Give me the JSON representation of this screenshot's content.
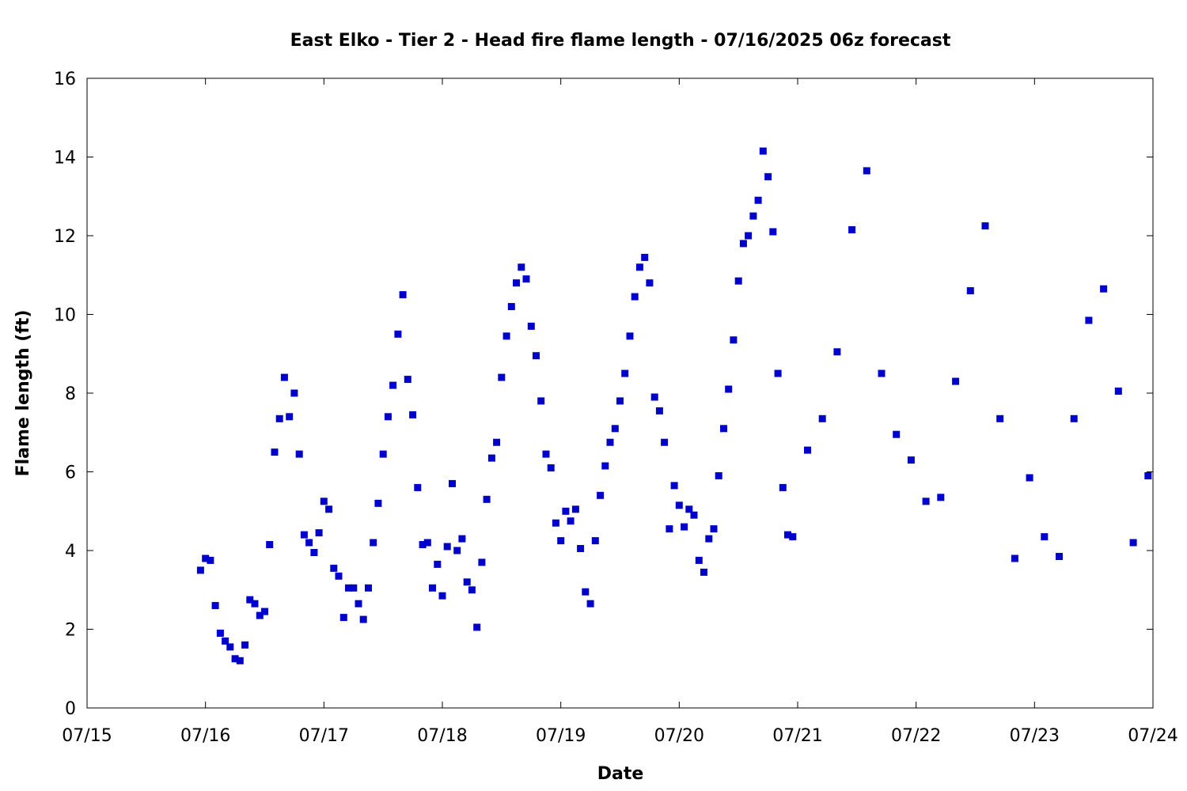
{
  "chart_data": {
    "type": "scatter",
    "title": "East Elko - Tier 2 - Head fire flame length - 07/16/2025 06z forecast",
    "xlabel": "Date",
    "ylabel": "Flame length (ft)",
    "x_axis": {
      "type": "date",
      "min": "2025-07-15T00:00",
      "max": "2025-07-24T00:00",
      "tick_labels": [
        "07/15",
        "07/16",
        "07/17",
        "07/18",
        "07/19",
        "07/20",
        "07/21",
        "07/22",
        "07/23",
        "07/24"
      ]
    },
    "ylim": [
      0,
      16
    ],
    "y_ticks": [
      0,
      2,
      4,
      6,
      8,
      10,
      12,
      14,
      16
    ],
    "grid": false,
    "marker_color": "#0000cc",
    "series": [
      {
        "points": [
          [
            "2025-07-15T23:00",
            3.5
          ],
          [
            "2025-07-16T00:00",
            3.8
          ],
          [
            "2025-07-16T01:00",
            3.75
          ],
          [
            "2025-07-16T02:00",
            2.6
          ],
          [
            "2025-07-16T03:00",
            1.9
          ],
          [
            "2025-07-16T04:00",
            1.7
          ],
          [
            "2025-07-16T05:00",
            1.55
          ],
          [
            "2025-07-16T06:00",
            1.25
          ],
          [
            "2025-07-16T07:00",
            1.2
          ],
          [
            "2025-07-16T08:00",
            1.6
          ],
          [
            "2025-07-16T09:00",
            2.75
          ],
          [
            "2025-07-16T10:00",
            2.65
          ],
          [
            "2025-07-16T11:00",
            2.35
          ],
          [
            "2025-07-16T12:00",
            2.45
          ],
          [
            "2025-07-16T13:00",
            4.15
          ],
          [
            "2025-07-16T14:00",
            6.5
          ],
          [
            "2025-07-16T15:00",
            7.35
          ],
          [
            "2025-07-16T16:00",
            8.4
          ],
          [
            "2025-07-16T17:00",
            7.4
          ],
          [
            "2025-07-16T18:00",
            8.0
          ],
          [
            "2025-07-16T19:00",
            6.45
          ],
          [
            "2025-07-16T20:00",
            4.4
          ],
          [
            "2025-07-16T21:00",
            4.2
          ],
          [
            "2025-07-16T22:00",
            3.95
          ],
          [
            "2025-07-16T23:00",
            4.45
          ],
          [
            "2025-07-17T00:00",
            5.25
          ],
          [
            "2025-07-17T01:00",
            5.05
          ],
          [
            "2025-07-17T02:00",
            3.55
          ],
          [
            "2025-07-17T03:00",
            3.35
          ],
          [
            "2025-07-17T04:00",
            2.3
          ],
          [
            "2025-07-17T05:00",
            3.05
          ],
          [
            "2025-07-17T06:00",
            3.05
          ],
          [
            "2025-07-17T07:00",
            2.65
          ],
          [
            "2025-07-17T08:00",
            2.25
          ],
          [
            "2025-07-17T09:00",
            3.05
          ],
          [
            "2025-07-17T10:00",
            4.2
          ],
          [
            "2025-07-17T11:00",
            5.2
          ],
          [
            "2025-07-17T12:00",
            6.45
          ],
          [
            "2025-07-17T13:00",
            7.4
          ],
          [
            "2025-07-17T14:00",
            8.2
          ],
          [
            "2025-07-17T15:00",
            9.5
          ],
          [
            "2025-07-17T16:00",
            10.5
          ],
          [
            "2025-07-17T17:00",
            8.35
          ],
          [
            "2025-07-17T18:00",
            7.45
          ],
          [
            "2025-07-17T19:00",
            5.6
          ],
          [
            "2025-07-17T20:00",
            4.15
          ],
          [
            "2025-07-17T21:00",
            4.2
          ],
          [
            "2025-07-17T22:00",
            3.05
          ],
          [
            "2025-07-17T23:00",
            3.65
          ],
          [
            "2025-07-18T00:00",
            2.85
          ],
          [
            "2025-07-18T01:00",
            4.1
          ],
          [
            "2025-07-18T02:00",
            5.7
          ],
          [
            "2025-07-18T03:00",
            4.0
          ],
          [
            "2025-07-18T04:00",
            4.3
          ],
          [
            "2025-07-18T05:00",
            3.2
          ],
          [
            "2025-07-18T06:00",
            3.0
          ],
          [
            "2025-07-18T07:00",
            2.05
          ],
          [
            "2025-07-18T08:00",
            3.7
          ],
          [
            "2025-07-18T09:00",
            5.3
          ],
          [
            "2025-07-18T10:00",
            6.35
          ],
          [
            "2025-07-18T11:00",
            6.75
          ],
          [
            "2025-07-18T12:00",
            8.4
          ],
          [
            "2025-07-18T13:00",
            9.45
          ],
          [
            "2025-07-18T14:00",
            10.2
          ],
          [
            "2025-07-18T15:00",
            10.8
          ],
          [
            "2025-07-18T16:00",
            11.2
          ],
          [
            "2025-07-18T17:00",
            10.9
          ],
          [
            "2025-07-18T18:00",
            9.7
          ],
          [
            "2025-07-18T19:00",
            8.95
          ],
          [
            "2025-07-18T20:00",
            7.8
          ],
          [
            "2025-07-18T21:00",
            6.45
          ],
          [
            "2025-07-18T22:00",
            6.1
          ],
          [
            "2025-07-18T23:00",
            4.7
          ],
          [
            "2025-07-19T00:00",
            4.25
          ],
          [
            "2025-07-19T01:00",
            5.0
          ],
          [
            "2025-07-19T02:00",
            4.75
          ],
          [
            "2025-07-19T03:00",
            5.05
          ],
          [
            "2025-07-19T04:00",
            4.05
          ],
          [
            "2025-07-19T05:00",
            2.95
          ],
          [
            "2025-07-19T06:00",
            2.65
          ],
          [
            "2025-07-19T07:00",
            4.25
          ],
          [
            "2025-07-19T08:00",
            5.4
          ],
          [
            "2025-07-19T09:00",
            6.15
          ],
          [
            "2025-07-19T10:00",
            6.75
          ],
          [
            "2025-07-19T11:00",
            7.1
          ],
          [
            "2025-07-19T12:00",
            7.8
          ],
          [
            "2025-07-19T13:00",
            8.5
          ],
          [
            "2025-07-19T14:00",
            9.45
          ],
          [
            "2025-07-19T15:00",
            10.45
          ],
          [
            "2025-07-19T16:00",
            11.2
          ],
          [
            "2025-07-19T17:00",
            11.45
          ],
          [
            "2025-07-19T18:00",
            10.8
          ],
          [
            "2025-07-19T19:00",
            7.9
          ],
          [
            "2025-07-19T20:00",
            7.55
          ],
          [
            "2025-07-19T21:00",
            6.75
          ],
          [
            "2025-07-19T22:00",
            4.55
          ],
          [
            "2025-07-19T23:00",
            5.65
          ],
          [
            "2025-07-20T00:00",
            5.15
          ],
          [
            "2025-07-20T01:00",
            4.6
          ],
          [
            "2025-07-20T02:00",
            5.05
          ],
          [
            "2025-07-20T03:00",
            4.9
          ],
          [
            "2025-07-20T04:00",
            3.75
          ],
          [
            "2025-07-20T05:00",
            3.45
          ],
          [
            "2025-07-20T06:00",
            4.3
          ],
          [
            "2025-07-20T07:00",
            4.55
          ],
          [
            "2025-07-20T08:00",
            5.9
          ],
          [
            "2025-07-20T09:00",
            7.1
          ],
          [
            "2025-07-20T10:00",
            8.1
          ],
          [
            "2025-07-20T11:00",
            9.35
          ],
          [
            "2025-07-20T12:00",
            10.85
          ],
          [
            "2025-07-20T13:00",
            11.8
          ],
          [
            "2025-07-20T14:00",
            12.0
          ],
          [
            "2025-07-20T15:00",
            12.5
          ],
          [
            "2025-07-20T16:00",
            12.9
          ],
          [
            "2025-07-20T17:00",
            14.15
          ],
          [
            "2025-07-20T18:00",
            13.5
          ],
          [
            "2025-07-20T19:00",
            12.1
          ],
          [
            "2025-07-20T20:00",
            8.5
          ],
          [
            "2025-07-20T21:00",
            5.6
          ],
          [
            "2025-07-20T22:00",
            4.4
          ],
          [
            "2025-07-20T23:00",
            4.35
          ],
          [
            "2025-07-21T02:00",
            6.55
          ],
          [
            "2025-07-21T05:00",
            7.35
          ],
          [
            "2025-07-21T08:00",
            9.05
          ],
          [
            "2025-07-21T11:00",
            12.15
          ],
          [
            "2025-07-21T14:00",
            13.65
          ],
          [
            "2025-07-21T17:00",
            8.5
          ],
          [
            "2025-07-21T20:00",
            6.95
          ],
          [
            "2025-07-21T23:00",
            6.3
          ],
          [
            "2025-07-22T02:00",
            5.25
          ],
          [
            "2025-07-22T05:00",
            5.35
          ],
          [
            "2025-07-22T08:00",
            8.3
          ],
          [
            "2025-07-22T11:00",
            10.6
          ],
          [
            "2025-07-22T14:00",
            12.25
          ],
          [
            "2025-07-22T17:00",
            7.35
          ],
          [
            "2025-07-22T20:00",
            3.8
          ],
          [
            "2025-07-22T23:00",
            5.85
          ],
          [
            "2025-07-23T02:00",
            4.35
          ],
          [
            "2025-07-23T05:00",
            3.85
          ],
          [
            "2025-07-23T08:00",
            7.35
          ],
          [
            "2025-07-23T11:00",
            9.85
          ],
          [
            "2025-07-23T14:00",
            10.65
          ],
          [
            "2025-07-23T17:00",
            8.05
          ],
          [
            "2025-07-23T20:00",
            4.2
          ],
          [
            "2025-07-23T23:00",
            5.9
          ]
        ]
      }
    ]
  }
}
